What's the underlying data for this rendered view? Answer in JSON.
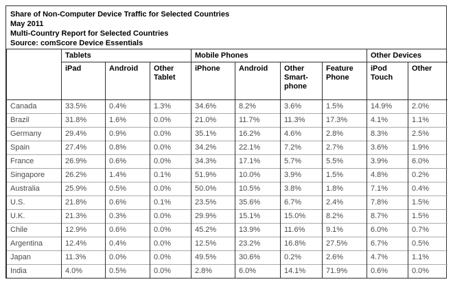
{
  "header": {
    "title": "Share of Non-Computer Device Traffic for Selected Countries",
    "date": "May 2011",
    "subtitle": "Multi-Country Report for Selected Countries",
    "source": "Source: comScore Device Essentials"
  },
  "table": {
    "groups": [
      {
        "label": "Tablets",
        "colspan": 3
      },
      {
        "label": "Mobile Phones",
        "colspan": 4
      },
      {
        "label": "Other Devices",
        "colspan": 2
      }
    ],
    "columns": [
      {
        "id": "tablets-ipad",
        "label": "iPad"
      },
      {
        "id": "tablets-android",
        "label": "Android"
      },
      {
        "id": "tablets-other-tablet",
        "label": "Other Tablet"
      },
      {
        "id": "mobile-iphone",
        "label": "iPhone"
      },
      {
        "id": "mobile-android",
        "label": "Android"
      },
      {
        "id": "mobile-other-smartphone",
        "label": "Other Smart-phone"
      },
      {
        "id": "mobile-feature-phone",
        "label": "Feature Phone"
      },
      {
        "id": "other-ipod-touch",
        "label": "iPod Touch"
      },
      {
        "id": "other-other",
        "label": "Other"
      }
    ],
    "rows": [
      {
        "country": "Canada",
        "values": [
          "33.5%",
          "0.4%",
          "1.3%",
          "34.6%",
          "8.2%",
          "3.6%",
          "1.5%",
          "14.9%",
          "2.0%"
        ]
      },
      {
        "country": "Brazil",
        "values": [
          "31.8%",
          "1.6%",
          "0.0%",
          "21.0%",
          "11.7%",
          "11.3%",
          "17.3%",
          "4.1%",
          "1.1%"
        ]
      },
      {
        "country": "Germany",
        "values": [
          "29.4%",
          "0.9%",
          "0.0%",
          "35.1%",
          "16.2%",
          "4.6%",
          "2.8%",
          "8.3%",
          "2.5%"
        ]
      },
      {
        "country": "Spain",
        "values": [
          "27.4%",
          "0.8%",
          "0.0%",
          "34.2%",
          "22.1%",
          "7.2%",
          "2.7%",
          "3.6%",
          "1.9%"
        ]
      },
      {
        "country": "France",
        "values": [
          "26.9%",
          "0.6%",
          "0.0%",
          "34.3%",
          "17.1%",
          "5.7%",
          "5.5%",
          "3.9%",
          "6.0%"
        ]
      },
      {
        "country": "Singapore",
        "values": [
          "26.2%",
          "1.4%",
          "0.1%",
          "51.9%",
          "10.0%",
          "3.9%",
          "1.5%",
          "4.8%",
          "0.2%"
        ]
      },
      {
        "country": "Australia",
        "values": [
          "25.9%",
          "0.5%",
          "0.0%",
          "50.0%",
          "10.5%",
          "3.8%",
          "1.8%",
          "7.1%",
          "0.4%"
        ]
      },
      {
        "country": "U.S.",
        "values": [
          "21.8%",
          "0.6%",
          "0.1%",
          "23.5%",
          "35.6%",
          "6.7%",
          "2.4%",
          "7.8%",
          "1.5%"
        ]
      },
      {
        "country": "U.K.",
        "values": [
          "21.3%",
          "0.3%",
          "0.0%",
          "29.9%",
          "15.1%",
          "15.0%",
          "8.2%",
          "8.7%",
          "1.5%"
        ]
      },
      {
        "country": "Chile",
        "values": [
          "12.9%",
          "0.6%",
          "0.0%",
          "45.2%",
          "13.9%",
          "11.6%",
          "9.1%",
          "6.0%",
          "0.7%"
        ]
      },
      {
        "country": "Argentina",
        "values": [
          "12.4%",
          "0.4%",
          "0.0%",
          "12.5%",
          "23.2%",
          "16.8%",
          "27.5%",
          "6.7%",
          "0.5%"
        ]
      },
      {
        "country": "Japan",
        "values": [
          "11.3%",
          "0.0%",
          "0.0%",
          "49.5%",
          "30.6%",
          "0.2%",
          "2.6%",
          "4.7%",
          "1.1%"
        ]
      },
      {
        "country": "India",
        "values": [
          "4.0%",
          "0.5%",
          "0.0%",
          "2.8%",
          "6.0%",
          "14.1%",
          "71.9%",
          "0.6%",
          "0.0%"
        ]
      }
    ]
  },
  "colors": {
    "background": "#ffffff",
    "border_dark": "#2e2e2e",
    "border_light": "#a9a9a9",
    "header_text": "#000000",
    "data_text": "#4a4a4a"
  },
  "chart_data": {
    "type": "table",
    "title": "Share of Non-Computer Device Traffic for Selected Countries",
    "subtitle": "May 2011 — Multi-Country Report for Selected Countries",
    "source": "comScore Device Essentials",
    "unit": "%",
    "column_groups": [
      "Tablets",
      "Tablets",
      "Tablets",
      "Mobile Phones",
      "Mobile Phones",
      "Mobile Phones",
      "Mobile Phones",
      "Other Devices",
      "Other Devices"
    ],
    "columns": [
      "iPad",
      "Android",
      "Other Tablet",
      "iPhone",
      "Android",
      "Other Smartphone",
      "Feature Phone",
      "iPod Touch",
      "Other"
    ],
    "rows": [
      {
        "country": "Canada",
        "values": [
          33.5,
          0.4,
          1.3,
          34.6,
          8.2,
          3.6,
          1.5,
          14.9,
          2.0
        ]
      },
      {
        "country": "Brazil",
        "values": [
          31.8,
          1.6,
          0.0,
          21.0,
          11.7,
          11.3,
          17.3,
          4.1,
          1.1
        ]
      },
      {
        "country": "Germany",
        "values": [
          29.4,
          0.9,
          0.0,
          35.1,
          16.2,
          4.6,
          2.8,
          8.3,
          2.5
        ]
      },
      {
        "country": "Spain",
        "values": [
          27.4,
          0.8,
          0.0,
          34.2,
          22.1,
          7.2,
          2.7,
          3.6,
          1.9
        ]
      },
      {
        "country": "France",
        "values": [
          26.9,
          0.6,
          0.0,
          34.3,
          17.1,
          5.7,
          5.5,
          3.9,
          6.0
        ]
      },
      {
        "country": "Singapore",
        "values": [
          26.2,
          1.4,
          0.1,
          51.9,
          10.0,
          3.9,
          1.5,
          4.8,
          0.2
        ]
      },
      {
        "country": "Australia",
        "values": [
          25.9,
          0.5,
          0.0,
          50.0,
          10.5,
          3.8,
          1.8,
          7.1,
          0.4
        ]
      },
      {
        "country": "U.S.",
        "values": [
          21.8,
          0.6,
          0.1,
          23.5,
          35.6,
          6.7,
          2.4,
          7.8,
          1.5
        ]
      },
      {
        "country": "U.K.",
        "values": [
          21.3,
          0.3,
          0.0,
          29.9,
          15.1,
          15.0,
          8.2,
          8.7,
          1.5
        ]
      },
      {
        "country": "Chile",
        "values": [
          12.9,
          0.6,
          0.0,
          45.2,
          13.9,
          11.6,
          9.1,
          6.0,
          0.7
        ]
      },
      {
        "country": "Argentina",
        "values": [
          12.4,
          0.4,
          0.0,
          12.5,
          23.2,
          16.8,
          27.5,
          6.7,
          0.5
        ]
      },
      {
        "country": "Japan",
        "values": [
          11.3,
          0.0,
          0.0,
          49.5,
          30.6,
          0.2,
          2.6,
          4.7,
          1.1
        ]
      },
      {
        "country": "India",
        "values": [
          4.0,
          0.5,
          0.0,
          2.8,
          6.0,
          14.1,
          71.9,
          0.6,
          0.0
        ]
      }
    ]
  }
}
